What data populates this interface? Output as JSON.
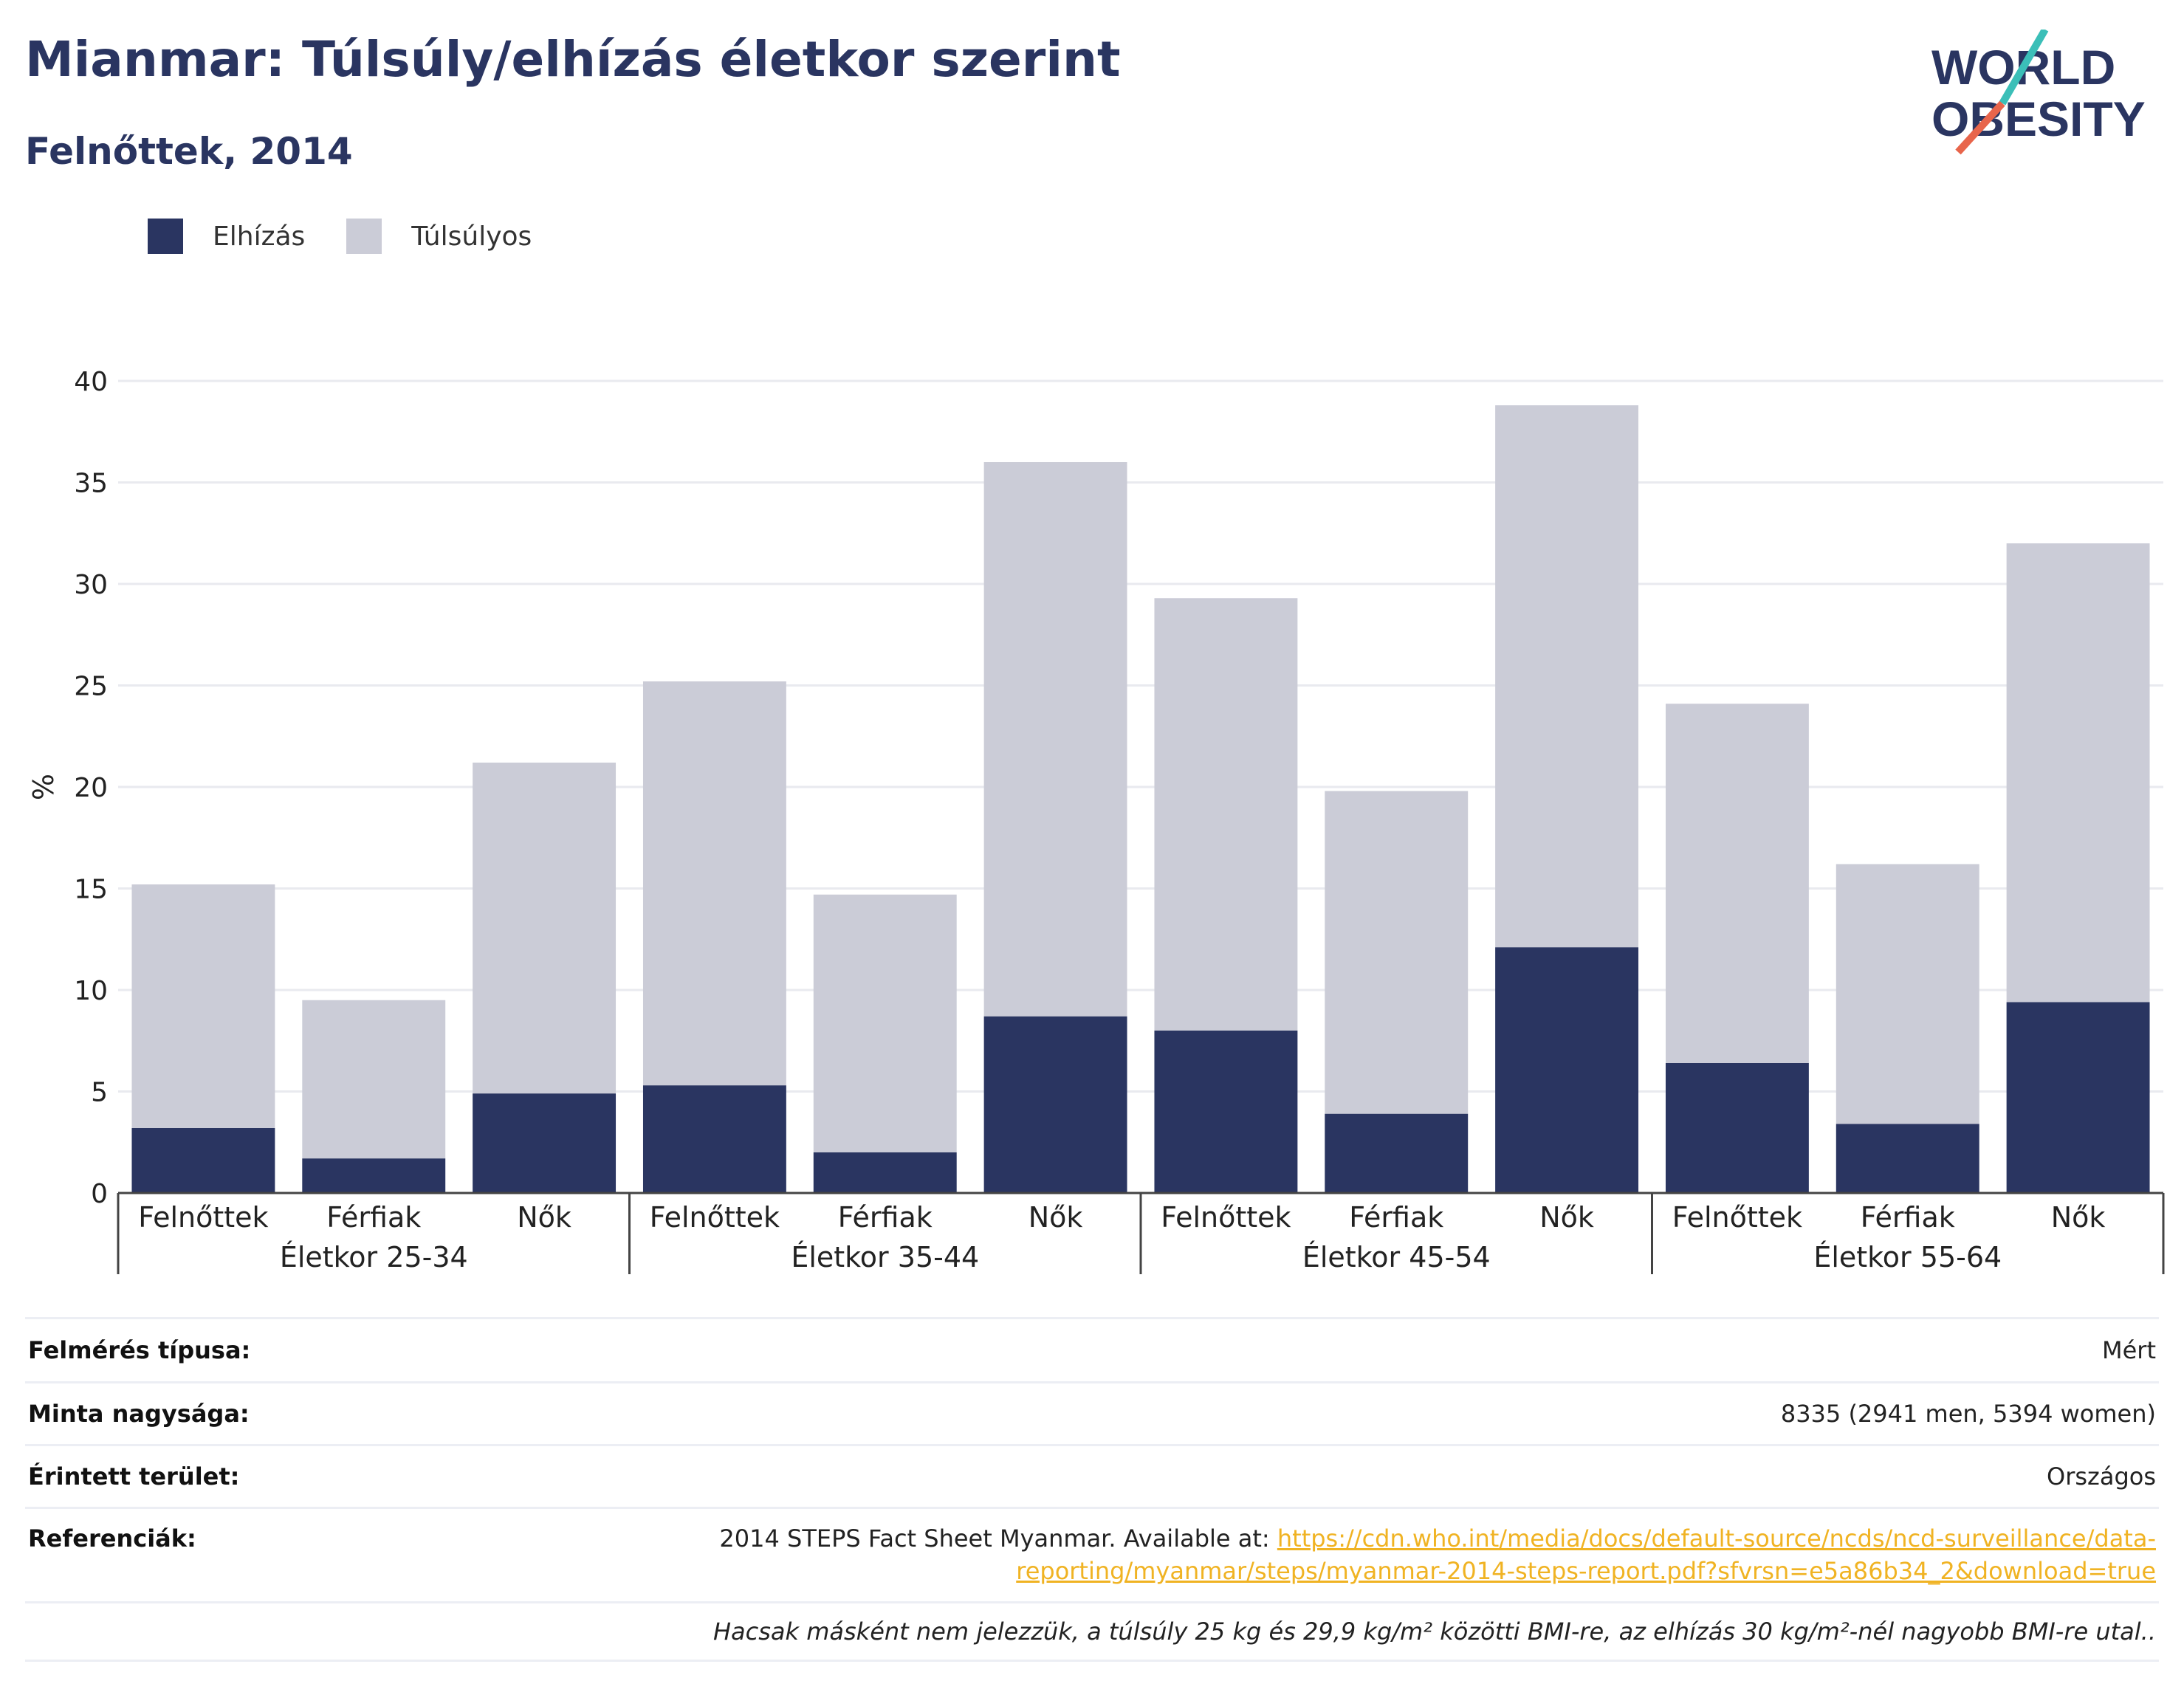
{
  "header": {
    "title": "Mianmar: Túlsúly/elhízás életkor szerint",
    "subtitle": "Felnőttek, 2014"
  },
  "logo": {
    "line1": "WORLD",
    "line2": "OBESITY"
  },
  "colors": {
    "obesity": "#2a3561",
    "overweight": "#cbccd7",
    "title": "#2a3561",
    "link": "#f0b323",
    "logo_accent_teal": "#3bbfb8",
    "logo_accent_red": "#e8654b"
  },
  "legend": {
    "obesity_label": "Elhízás",
    "overweight_label": "Túlsúlyos"
  },
  "chart_data": {
    "type": "bar",
    "stacked": true,
    "ylabel": "%",
    "ylim": [
      0,
      40
    ],
    "yticks": [
      0,
      5,
      10,
      15,
      20,
      25,
      30,
      35,
      40
    ],
    "grid": true,
    "legend_position": "top-left",
    "groups": [
      "Életkor 25-34",
      "Életkor 35-44",
      "Életkor 45-54",
      "Életkor 55-64"
    ],
    "categories": [
      "Felnőttek",
      "Férfiak",
      "Nők",
      "Felnőttek",
      "Férfiak",
      "Nők",
      "Felnőttek",
      "Férfiak",
      "Nők",
      "Felnőttek",
      "Férfiak",
      "Nők"
    ],
    "series": [
      {
        "name": "Elhízás",
        "values": [
          3.2,
          1.7,
          4.9,
          5.3,
          2.0,
          8.7,
          8.0,
          3.9,
          12.1,
          6.4,
          3.4,
          9.4
        ]
      },
      {
        "name": "Túlsúlyos",
        "values": [
          12.0,
          7.8,
          16.3,
          19.9,
          12.7,
          27.3,
          21.3,
          15.9,
          26.7,
          17.7,
          12.8,
          22.6
        ]
      }
    ]
  },
  "info": {
    "survey_type_label": "Felmérés típusa:",
    "survey_type_value": "Mért",
    "sample_size_label": "Minta nagysága:",
    "sample_size_value": "8335 (2941 men, 5394 women)",
    "area_label": "Érintett terület:",
    "area_value": "Országos",
    "references_label": "Referenciák:",
    "references_text": "2014 STEPS Fact Sheet Myanmar. Available at: ",
    "references_link_line1": "https://cdn.who.int/media/docs/default-source/ncds/ncd-surveillance/data-",
    "references_link_line2": "reporting/myanmar/steps/myanmar-2014-steps-report.pdf?sfvrsn=e5a86b34_2&download=true",
    "footnote": "Hacsak másként nem jelezzük, a túlsúly 25 kg és 29,9 kg/m² közötti BMI-re, az elhízás 30 kg/m²-nél nagyobb BMI-re utal.."
  }
}
